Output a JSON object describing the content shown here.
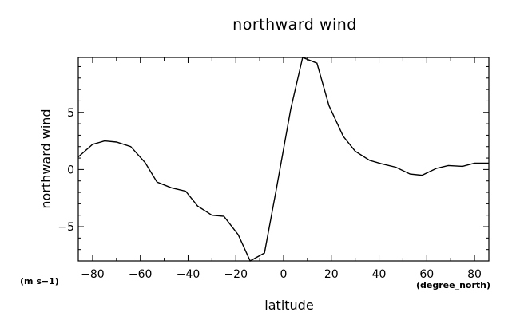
{
  "chart_data": {
    "type": "line",
    "title": "northward wind",
    "xlabel": "latitude",
    "ylabel": "northward wind",
    "x_unit": "(degree_north)",
    "y_unit": "(m s−1)",
    "xlim": [
      -86,
      86
    ],
    "ylim": [
      -8.0,
      9.8
    ],
    "x_ticks": [
      -80,
      -60,
      -40,
      -20,
      0,
      20,
      40,
      60,
      80
    ],
    "y_ticks": [
      -5,
      0,
      5
    ],
    "grid": false,
    "series": [
      {
        "x": [
          -86,
          -80,
          -75,
          -70,
          -64,
          -58,
          -53,
          -47,
          -41,
          -36,
          -30,
          -25,
          -19,
          -14,
          -8,
          -3,
          3,
          8,
          14,
          19,
          25,
          30,
          36,
          41,
          47,
          53,
          58,
          64,
          69,
          75,
          80,
          86
        ],
        "y": [
          1.1,
          2.2,
          2.5,
          2.4,
          2.0,
          0.6,
          -1.1,
          -1.6,
          -1.9,
          -3.2,
          -4.0,
          -4.1,
          -5.7,
          -8.0,
          -7.3,
          -1.7,
          5.3,
          9.8,
          9.3,
          5.6,
          2.9,
          1.6,
          0.8,
          0.5,
          0.2,
          -0.4,
          -0.5,
          0.1,
          0.35,
          0.28,
          0.55,
          0.55
        ]
      }
    ]
  }
}
